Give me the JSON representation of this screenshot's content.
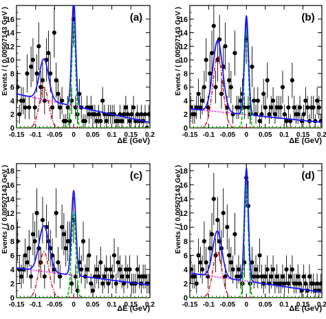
{
  "figure": {
    "xlabel": "ΔE (GeV)",
    "ylabel": "Events / ( 0.00507143 GeV )"
  },
  "colors": {
    "data": "#000000",
    "total_fit": "#1a1aff",
    "signal": "#00cc00",
    "peaking_background": "#e00000",
    "combinatorial_background": "#ff00ff"
  },
  "chart_data": [
    {
      "type": "scatter",
      "panel_label": "(a)",
      "xlabel": "ΔE (GeV)",
      "ylabel": "Events / ( 0.00507143 GeV )",
      "xlim": [
        -0.15,
        0.2
      ],
      "ylim": [
        0,
        18
      ],
      "xticks": [
        -0.15,
        -0.1,
        -0.05,
        0,
        0.05,
        0.1,
        0.15,
        0.2
      ],
      "xtick_labels": [
        "-0.15",
        "-0.1",
        "-0.05",
        "0",
        "0.05",
        "0.1",
        "0.15",
        "0.2"
      ],
      "yticks": [
        0,
        2,
        4,
        6,
        8,
        10,
        12,
        14,
        16
      ],
      "grid": false,
      "points": {
        "x": [
          -0.1474,
          -0.1423,
          -0.1373,
          -0.1322,
          -0.1271,
          -0.122,
          -0.117,
          -0.1119,
          -0.1068,
          -0.1018,
          -0.0967,
          -0.0916,
          -0.0865,
          -0.0815,
          -0.0764,
          -0.0713,
          -0.0662,
          -0.0612,
          -0.0561,
          -0.051,
          -0.046,
          -0.0409,
          -0.0358,
          -0.0307,
          -0.0257,
          -0.0206,
          -0.0155,
          -0.0104,
          -0.0054,
          -0.0003,
          0.0048,
          0.0099,
          0.0149,
          0.02,
          0.0251,
          0.0301,
          0.0352,
          0.0403,
          0.0454,
          0.0504,
          0.0555,
          0.0606,
          0.0656,
          0.0707,
          0.0758,
          0.0809,
          0.0859,
          0.091,
          0.0961,
          0.1011,
          0.1062,
          0.1113,
          0.1164,
          0.1214,
          0.1265,
          0.1316,
          0.1366,
          0.1417,
          0.1468,
          0.1519,
          0.1569,
          0.162,
          0.1671,
          0.1721,
          0.1772,
          0.1823,
          0.1874,
          0.1924,
          0.1975
        ],
        "y": [
          6,
          2,
          4,
          4,
          3,
          8,
          3,
          9,
          10,
          3,
          8,
          12,
          6,
          7,
          4,
          10,
          11,
          8,
          3,
          14,
          7,
          5,
          3,
          4,
          1,
          1,
          3,
          1,
          4,
          16,
          3,
          2,
          5,
          3,
          1,
          1,
          3,
          2,
          3,
          2,
          2,
          1,
          2,
          1,
          4,
          2,
          1,
          2,
          2,
          2,
          2,
          1,
          1,
          2,
          1,
          2,
          3,
          2,
          1,
          2,
          3,
          1,
          2,
          1,
          2,
          1,
          2,
          0,
          2
        ],
        "yerr": [
          2.4,
          1.4,
          2,
          2,
          1.7,
          2.8,
          1.7,
          3,
          3.2,
          1.7,
          2.8,
          3.5,
          2.4,
          2.6,
          2,
          3.2,
          3.3,
          2.8,
          1.7,
          3.7,
          2.6,
          2.2,
          1.7,
          2,
          1,
          1,
          1.7,
          1,
          2,
          4,
          1.7,
          1.4,
          2.2,
          1.7,
          1,
          1,
          1.7,
          1.4,
          1.7,
          1.4,
          1.4,
          1,
          1.4,
          1,
          2,
          1.4,
          1,
          1.4,
          1.4,
          1.4,
          1.4,
          1,
          1,
          1.4,
          1,
          1.4,
          1.7,
          1.4,
          1,
          1.4,
          1.7,
          1,
          1.4,
          1,
          1.4,
          1,
          1.4,
          1,
          1.4
        ]
      },
      "model": {
        "peak_mean": 0.0,
        "peak_sigma": 0.0052,
        "peak_height": 15.5,
        "reflection_mean": -0.078,
        "reflection_sigma": 0.012,
        "reflection_height": 6.0,
        "background_start": 5.0,
        "background_end": 0.8
      }
    },
    {
      "type": "scatter",
      "panel_label": "(b)",
      "xlabel": "ΔE (GeV)",
      "ylabel": "Events / ( 0.00507143 GeV )",
      "xlim": [
        -0.15,
        0.2
      ],
      "ylim": [
        0,
        18
      ],
      "xticks": [
        -0.15,
        -0.1,
        -0.05,
        0,
        0.05,
        0.1,
        0.15,
        0.2
      ],
      "xtick_labels": [
        "-0.15",
        "-0.1",
        "-0.05",
        "0",
        "0.05",
        "0.1",
        "0.15",
        "0.2"
      ],
      "yticks": [
        0,
        2,
        4,
        6,
        8,
        10,
        12,
        14,
        16
      ],
      "grid": false,
      "points": {
        "x": [
          -0.1474,
          -0.1423,
          -0.1373,
          -0.1322,
          -0.1271,
          -0.122,
          -0.117,
          -0.1119,
          -0.1068,
          -0.1018,
          -0.0967,
          -0.0916,
          -0.0865,
          -0.0815,
          -0.0764,
          -0.0713,
          -0.0662,
          -0.0612,
          -0.0561,
          -0.051,
          -0.046,
          -0.0409,
          -0.0358,
          -0.0307,
          -0.0257,
          -0.0206,
          -0.0155,
          -0.0104,
          -0.0054,
          -0.0003,
          0.0048,
          0.0099,
          0.0149,
          0.02,
          0.0251,
          0.0301,
          0.0352,
          0.0403,
          0.0454,
          0.0504,
          0.0555,
          0.0606,
          0.0656,
          0.0707,
          0.0758,
          0.0809,
          0.0859,
          0.091,
          0.0961,
          0.1011,
          0.1062,
          0.1113,
          0.1164,
          0.1214,
          0.1265,
          0.1316,
          0.1366,
          0.1417,
          0.1468,
          0.1519,
          0.1569,
          0.162,
          0.1671,
          0.1721,
          0.1772,
          0.1823,
          0.1874,
          0.1924,
          0.1975
        ],
        "y": [
          3,
          2,
          2,
          3,
          5,
          3,
          4,
          6,
          10,
          3,
          8,
          11,
          15,
          6,
          10,
          13,
          5,
          9,
          12,
          3,
          7,
          6,
          2,
          11,
          3,
          3,
          4,
          5,
          3,
          13,
          3,
          2,
          9,
          4,
          2,
          4,
          1,
          2,
          5,
          3,
          7,
          2,
          3,
          4,
          2,
          3,
          3,
          3,
          6,
          2,
          1,
          3,
          1,
          7,
          3,
          2,
          2,
          3,
          1,
          2,
          4,
          3,
          1,
          3,
          3,
          1,
          4,
          3,
          1
        ],
        "yerr": [
          1.7,
          1.4,
          1.4,
          1.7,
          2.2,
          1.7,
          2,
          2.4,
          3.2,
          1.7,
          2.8,
          3.3,
          3.9,
          2.4,
          3.2,
          3.6,
          2.2,
          3,
          3.5,
          1.7,
          2.6,
          2.4,
          1.4,
          3.3,
          1.7,
          1.7,
          2,
          2.2,
          1.7,
          3.6,
          1.7,
          1.4,
          3,
          2,
          1.4,
          2,
          1,
          1.4,
          2.2,
          1.7,
          2.6,
          1.4,
          1.7,
          2,
          1.4,
          1.7,
          1.7,
          1.7,
          2.4,
          1.4,
          1,
          1.7,
          1,
          2.6,
          1.7,
          1.4,
          1.4,
          1.7,
          1,
          1.4,
          2,
          1.7,
          1,
          1.7,
          1.7,
          1,
          2,
          1.7,
          1
        ]
      },
      "model": {
        "peak_mean": 0.0,
        "peak_sigma": 0.0055,
        "peak_height": 14.5,
        "reflection_mean": -0.076,
        "reflection_sigma": 0.013,
        "reflection_height": 10.5,
        "background_start": 2.8,
        "background_end": 0.8
      }
    },
    {
      "type": "scatter",
      "panel_label": "(c)",
      "xlabel": "ΔE (GeV)",
      "ylabel": "Events / ( 0.00507143 GeV )",
      "xlim": [
        -0.15,
        0.2
      ],
      "ylim": [
        0,
        19
      ],
      "xticks": [
        -0.15,
        -0.1,
        -0.05,
        0,
        0.05,
        0.1,
        0.15,
        0.2
      ],
      "xtick_labels": [
        "-0.15",
        "-0.1",
        "-0.05",
        "0",
        "0.05",
        "0.1",
        "0.15",
        "0.2"
      ],
      "yticks": [
        0,
        2,
        4,
        6,
        8,
        10,
        12,
        14,
        16,
        18
      ],
      "grid": false,
      "points": {
        "x": [
          -0.1474,
          -0.1423,
          -0.1373,
          -0.1322,
          -0.1271,
          -0.122,
          -0.117,
          -0.1119,
          -0.1068,
          -0.1018,
          -0.0967,
          -0.0916,
          -0.0865,
          -0.0815,
          -0.0764,
          -0.0713,
          -0.0662,
          -0.0612,
          -0.0561,
          -0.051,
          -0.046,
          -0.0409,
          -0.0358,
          -0.0307,
          -0.0257,
          -0.0206,
          -0.0155,
          -0.0104,
          -0.0054,
          -0.0003,
          0.0048,
          0.0099,
          0.0149,
          0.02,
          0.0251,
          0.0301,
          0.0352,
          0.0403,
          0.0454,
          0.0504,
          0.0555,
          0.0606,
          0.0656,
          0.0707,
          0.0758,
          0.0809,
          0.0859,
          0.091,
          0.0961,
          0.1011,
          0.1062,
          0.1113,
          0.1164,
          0.1214,
          0.1265,
          0.1316,
          0.1366,
          0.1417,
          0.1468,
          0.1519,
          0.1569,
          0.162,
          0.1671,
          0.1721,
          0.1772,
          0.1823,
          0.1874,
          0.1924,
          0.1975
        ],
        "y": [
          8,
          4,
          3,
          4,
          6,
          5,
          7,
          3,
          9,
          8,
          12,
          7,
          5,
          11,
          3,
          10,
          8,
          7,
          6,
          4,
          12,
          5,
          3,
          10,
          9,
          7,
          8,
          8,
          2,
          11,
          3,
          1,
          5,
          4,
          8,
          3,
          4,
          6,
          2,
          1,
          3,
          4,
          3,
          5,
          2,
          3,
          4,
          2,
          4,
          3,
          6,
          2,
          5,
          4,
          3,
          2,
          4,
          3,
          4,
          2,
          2,
          2,
          4,
          3,
          2,
          3,
          3,
          2,
          2
        ],
        "yerr": [
          2.8,
          2,
          1.7,
          2,
          2.4,
          2.2,
          2.6,
          1.7,
          3,
          2.8,
          3.5,
          2.6,
          2.2,
          3.3,
          1.7,
          3.2,
          2.8,
          2.6,
          2.4,
          2,
          3.5,
          2.2,
          1.7,
          3.2,
          3,
          2.6,
          2.8,
          2.8,
          1.4,
          3.3,
          1.7,
          1,
          2.2,
          2,
          2.8,
          1.7,
          2,
          2.4,
          1.4,
          1,
          1.7,
          2,
          1.7,
          2.2,
          1.4,
          1.7,
          2,
          1.4,
          2,
          1.7,
          2.4,
          1.4,
          2.2,
          2,
          1.7,
          1.4,
          2,
          1.7,
          2,
          1.4,
          1.4,
          1.4,
          2,
          1.7,
          1.4,
          1.7,
          1.7,
          1.4,
          1.4
        ]
      },
      "model": {
        "peak_mean": 0.0,
        "peak_sigma": 0.0058,
        "peak_height": 12.0,
        "reflection_mean": -0.078,
        "reflection_sigma": 0.013,
        "reflection_height": 6.5,
        "background_start": 4.2,
        "background_end": 1.8
      }
    },
    {
      "type": "scatter",
      "panel_label": "(d)",
      "xlabel": "ΔE (GeV)",
      "ylabel": "Events / ( 0.00507143 GeV )",
      "xlim": [
        -0.15,
        0.2
      ],
      "ylim": [
        0,
        19
      ],
      "xticks": [
        -0.15,
        -0.1,
        -0.05,
        0,
        0.05,
        0.1,
        0.15,
        0.2
      ],
      "xtick_labels": [
        "-0.15",
        "-0.1",
        "-0.05",
        "0",
        "0.05",
        "0.1",
        "0.15",
        "0.2"
      ],
      "yticks": [
        0,
        2,
        4,
        6,
        8,
        10,
        12,
        14,
        16,
        18
      ],
      "grid": false,
      "points": {
        "x": [
          -0.1474,
          -0.1423,
          -0.1373,
          -0.1322,
          -0.1271,
          -0.122,
          -0.117,
          -0.1119,
          -0.1068,
          -0.1018,
          -0.0967,
          -0.0916,
          -0.0865,
          -0.0815,
          -0.0764,
          -0.0713,
          -0.0662,
          -0.0612,
          -0.0561,
          -0.051,
          -0.046,
          -0.0409,
          -0.0358,
          -0.0307,
          -0.0257,
          -0.0206,
          -0.0155,
          -0.0104,
          -0.0054,
          -0.0003,
          0.0048,
          0.0099,
          0.0149,
          0.02,
          0.0251,
          0.0301,
          0.0352,
          0.0403,
          0.0454,
          0.0504,
          0.0555,
          0.0606,
          0.0656,
          0.0707,
          0.0758,
          0.0809,
          0.0859,
          0.091,
          0.0961,
          0.1011,
          0.1062,
          0.1113,
          0.1164,
          0.1214,
          0.1265,
          0.1316,
          0.1366,
          0.1417,
          0.1468,
          0.1519,
          0.1569,
          0.162,
          0.1671,
          0.1721,
          0.1772,
          0.1823,
          0.1874,
          0.1924,
          0.1975
        ],
        "y": [
          4,
          3,
          3,
          2,
          6,
          5,
          4,
          8,
          5,
          3,
          7,
          9,
          14,
          6,
          11,
          8,
          7,
          12,
          3,
          10,
          6,
          5,
          4,
          9,
          3,
          4,
          3,
          2,
          5,
          17,
          13,
          2,
          5,
          3,
          4,
          3,
          6,
          3,
          2,
          3,
          4,
          2,
          3,
          4,
          2,
          3,
          2,
          2,
          3,
          2,
          4,
          2,
          3,
          4,
          2,
          2,
          3,
          2,
          1,
          3,
          2,
          1,
          3,
          2,
          2,
          1,
          2,
          1,
          2
        ],
        "yerr": [
          2,
          1.7,
          1.7,
          1.4,
          2.4,
          2.2,
          2,
          2.8,
          2.2,
          1.7,
          2.6,
          3,
          3.7,
          2.4,
          3.3,
          2.8,
          2.6,
          3.5,
          1.7,
          3.2,
          2.4,
          2.2,
          2,
          3,
          1.7,
          2,
          1.7,
          1.4,
          2.2,
          4.1,
          3.6,
          1.4,
          2.2,
          1.7,
          2,
          1.7,
          2.4,
          1.7,
          1.4,
          1.7,
          2,
          1.4,
          1.7,
          2,
          1.4,
          1.7,
          1.4,
          1.4,
          1.7,
          1.4,
          2,
          1.4,
          1.7,
          2,
          1.4,
          1.4,
          1.7,
          1.4,
          1,
          1.7,
          1.4,
          1,
          1.7,
          1.4,
          1.4,
          1,
          1.4,
          1,
          1.4
        ]
      },
      "model": {
        "peak_mean": 0.0,
        "peak_sigma": 0.0052,
        "peak_height": 16.0,
        "reflection_mean": -0.077,
        "reflection_sigma": 0.012,
        "reflection_height": 6.5,
        "background_start": 3.5,
        "background_end": 0.8
      }
    }
  ]
}
